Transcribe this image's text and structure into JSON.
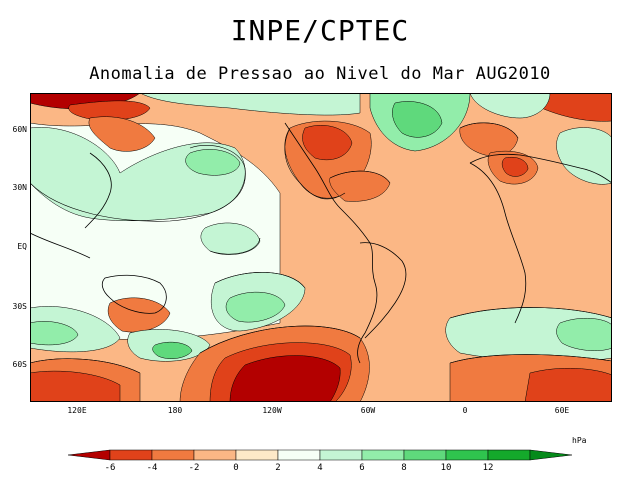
{
  "header": {
    "title": "INPE/CPTEC",
    "subtitle": "Anomalia de Pressao ao Nivel do Mar AUG2010"
  },
  "map": {
    "lat_labels": [
      "60N",
      "30N",
      "EQ",
      "30S",
      "60S"
    ],
    "lon_labels": [
      "120E",
      "180",
      "120W",
      "60W",
      "0",
      "60E"
    ]
  },
  "legend": {
    "unit": "hPa",
    "ticks": [
      "-6",
      "-4",
      "-2",
      "0",
      "2",
      "4",
      "6",
      "8",
      "10",
      "12"
    ],
    "colors": [
      "#b30000",
      "#e0421a",
      "#f07a40",
      "#fbb785",
      "#fde9c8",
      "#f6fff6",
      "#c4f5d4",
      "#92edaa",
      "#5fd97c",
      "#2fc44e",
      "#14a92b",
      "#058a1a"
    ]
  },
  "anomaly_colors": {
    "very_low": "#b30000",
    "low": "#e0421a",
    "mid_low": "#f07a40",
    "slight_low": "#fbb785",
    "near_zero_neg": "#fde9c8",
    "near_zero_pos": "#f6fff6",
    "slight_high": "#c4f5d4",
    "mid_high": "#92edaa",
    "high": "#5fd97c",
    "very_high": "#2fc44e"
  }
}
